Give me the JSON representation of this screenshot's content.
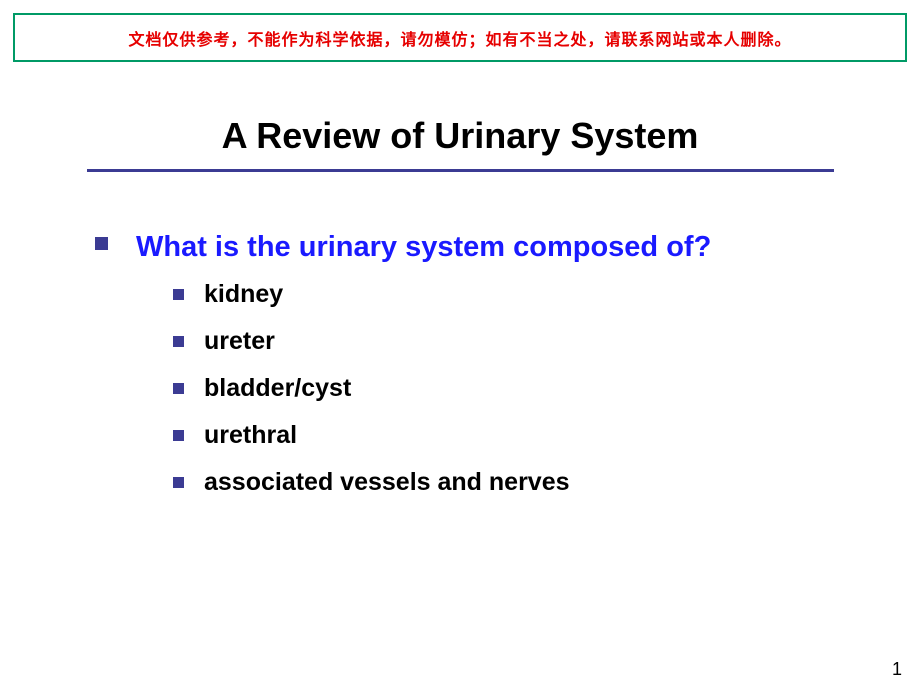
{
  "banner": {
    "text": "文档仅供参考，不能作为科学依据，请勿模仿；如有不当之处，请联系网站或本人删除。",
    "border_color": "#009a66",
    "text_color": "#e60000"
  },
  "title": {
    "text": "A Review of Urinary System",
    "underline_color": "#3b3b93"
  },
  "question": {
    "text": "What is the urinary system composed of?",
    "color": "#1a1aff",
    "bullet_color": "#3b3b93"
  },
  "items": [
    {
      "label": "kidney"
    },
    {
      "label": "ureter"
    },
    {
      "label": "bladder/cyst"
    },
    {
      "label": "urethral"
    },
    {
      "label": "associated vessels and nerves"
    }
  ],
  "item_style": {
    "bullet_color": "#3b3b93",
    "text_color": "#000000"
  },
  "page_number": "1",
  "background_color": "#ffffff"
}
